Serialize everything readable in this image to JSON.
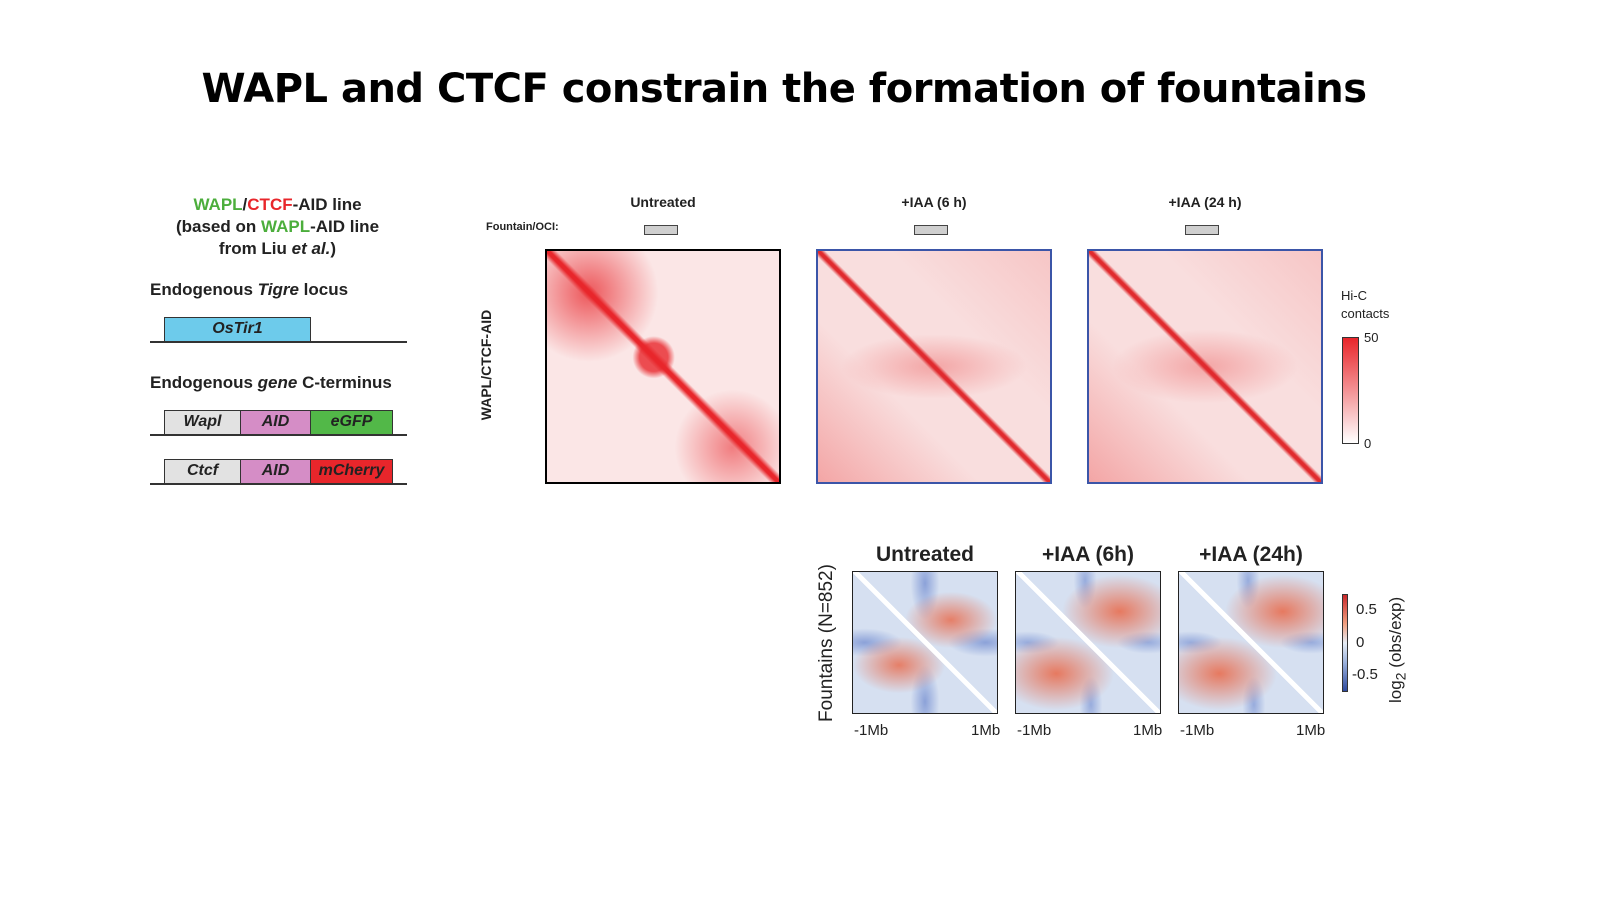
{
  "title": "WAPL and CTCF constrain the formation of fountains",
  "construct": {
    "line1": {
      "a": "WAPL",
      "b": "/",
      "c": "CTCF",
      "d": "-AID line"
    },
    "line2": {
      "a": "(based on ",
      "b": "WAPL",
      "c": "-AID line"
    },
    "line3": {
      "a": "from Liu ",
      "b": "et al.",
      "c": ")"
    },
    "tigre": {
      "a": "Endogenous ",
      "b": "Tigre",
      "c": " locus"
    },
    "ostir1": "OsTir1",
    "gene": {
      "a": "Endogenous ",
      "b": "gene",
      "c": " C-terminus"
    },
    "wapl_row": [
      "Wapl",
      "AID",
      "eGFP"
    ],
    "ctcf_row": [
      "Ctcf",
      "AID",
      "mCherry"
    ]
  },
  "hic": {
    "row_label": "WAPL/CTCF-AID",
    "track_label": "Fountain/OCI:",
    "conditions": [
      "Untreated",
      "+IAA (6 h)",
      "+IAA (24 h)"
    ],
    "colorbar": {
      "title1": "Hi-C",
      "title2": "contacts",
      "max": "50",
      "min": "0",
      "color": "#e8262b"
    }
  },
  "aggregate": {
    "ylabel": "Fountains (N=852)",
    "conditions": [
      "Untreated",
      "+IAA (6h)",
      "+IAA (24h)"
    ],
    "xticks": [
      "-1Mb",
      "1Mb"
    ],
    "colorbar": {
      "ticks": [
        "0.5",
        "0",
        "-0.5"
      ],
      "label": "log2 (obs/exp)",
      "label_main": "log",
      "label_sub": "2",
      "label_rest": "(obs/exp)"
    }
  }
}
